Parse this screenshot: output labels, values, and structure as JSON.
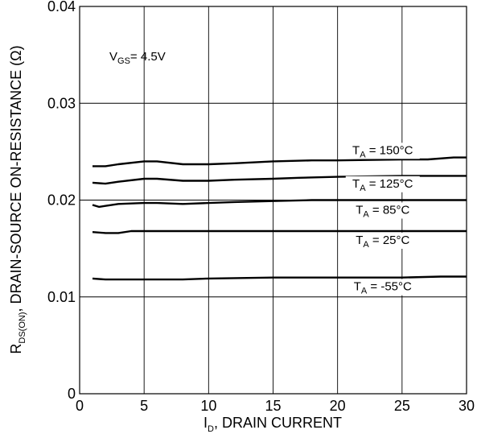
{
  "chart_data": {
    "type": "line",
    "xlabel_main": "I",
    "xlabel_sub": "D",
    "xlabel_rest": ", DRAIN CURRENT",
    "ylabel_main": "R",
    "ylabel_sub": "DS(ON)",
    "ylabel_rest": ", DRAIN-SOURCE ON-RESISTANCE (Ω)",
    "xlim": [
      0,
      30
    ],
    "ylim": [
      0,
      0.04
    ],
    "x_ticks": [
      0,
      5,
      10,
      15,
      20,
      25,
      30
    ],
    "x_tick_labels": [
      "0",
      "5",
      "10",
      "15",
      "20",
      "25",
      "30"
    ],
    "y_ticks": [
      0,
      0.01,
      0.02,
      0.03,
      0.04
    ],
    "y_tick_labels": [
      "0",
      "0.01",
      "0.02",
      "0.03",
      "0.04"
    ],
    "grid": true,
    "annotation": {
      "main": "V",
      "sub": "GS",
      "rest": "= 4.5V"
    },
    "series": [
      {
        "name_main": "T",
        "name_sub": "A",
        "name_rest": " = 150°C",
        "x": [
          1,
          2,
          3,
          5,
          6,
          8,
          10,
          12,
          15,
          18,
          20,
          25,
          27,
          29,
          30
        ],
        "y": [
          0.0235,
          0.0235,
          0.0237,
          0.024,
          0.024,
          0.0237,
          0.0237,
          0.0238,
          0.024,
          0.0241,
          0.0241,
          0.0242,
          0.0242,
          0.0244,
          0.0244
        ]
      },
      {
        "name_main": "T",
        "name_sub": "A",
        "name_rest": " = 125°C",
        "x": [
          1,
          2,
          3,
          5,
          6,
          8,
          10,
          12,
          15,
          17,
          20,
          25,
          30
        ],
        "y": [
          0.0218,
          0.0217,
          0.0219,
          0.0222,
          0.0222,
          0.022,
          0.022,
          0.0221,
          0.0222,
          0.0223,
          0.0224,
          0.0225,
          0.0225
        ]
      },
      {
        "name_main": "T",
        "name_sub": "A",
        "name_rest": " = 85°C",
        "x": [
          1,
          1.5,
          2,
          3,
          5,
          6,
          8,
          10,
          12,
          15,
          18,
          20,
          25,
          30
        ],
        "y": [
          0.0195,
          0.0193,
          0.0194,
          0.0196,
          0.0197,
          0.0197,
          0.0196,
          0.0197,
          0.0198,
          0.0199,
          0.02,
          0.02,
          0.02,
          0.02
        ]
      },
      {
        "name_main": "T",
        "name_sub": "A",
        "name_rest": " = 25°C",
        "x": [
          1,
          2,
          3,
          4,
          5,
          10,
          15,
          20,
          25,
          30
        ],
        "y": [
          0.0167,
          0.0166,
          0.0166,
          0.0168,
          0.0168,
          0.0168,
          0.0168,
          0.0168,
          0.0168,
          0.0168
        ]
      },
      {
        "name_main": "T",
        "name_sub": "A",
        "name_rest": " = -55°C",
        "x": [
          1,
          2,
          5,
          8,
          10,
          15,
          20,
          25,
          28,
          30
        ],
        "y": [
          0.0119,
          0.0118,
          0.0118,
          0.0118,
          0.0119,
          0.012,
          0.012,
          0.012,
          0.0121,
          0.0121
        ]
      }
    ]
  }
}
